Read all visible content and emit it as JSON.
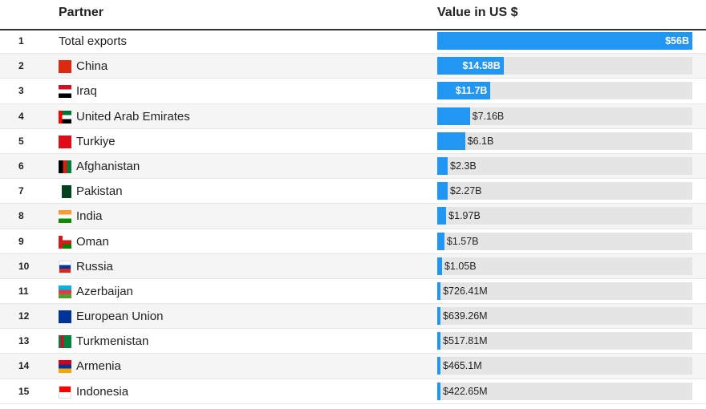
{
  "header": {
    "partner": "Partner",
    "value": "Value in US $"
  },
  "chart_data": {
    "type": "bar",
    "orientation": "horizontal",
    "xlabel": "Value in US $",
    "ylabel": "Partner",
    "xlim": [
      0,
      56000000000
    ],
    "bar_color": "#2196f3",
    "track_color": "#e5e5e5",
    "rows": [
      {
        "rank": "1",
        "partner": "Total exports",
        "value": 56000000000,
        "label": "$56B",
        "flag": null
      },
      {
        "rank": "2",
        "partner": "China",
        "value": 14580000000,
        "label": "$14.58B",
        "flag": "china-flag-icon"
      },
      {
        "rank": "3",
        "partner": "Iraq",
        "value": 11700000000,
        "label": "$11.7B",
        "flag": "iraq-flag-icon"
      },
      {
        "rank": "4",
        "partner": "United Arab Emirates",
        "value": 7160000000,
        "label": "$7.16B",
        "flag": "uae-flag-icon"
      },
      {
        "rank": "5",
        "partner": "Turkiye",
        "value": 6100000000,
        "label": "$6.1B",
        "flag": "turkiye-flag-icon"
      },
      {
        "rank": "6",
        "partner": "Afghanistan",
        "value": 2300000000,
        "label": "$2.3B",
        "flag": "afghanistan-flag-icon"
      },
      {
        "rank": "7",
        "partner": "Pakistan",
        "value": 2270000000,
        "label": "$2.27B",
        "flag": "pakistan-flag-icon"
      },
      {
        "rank": "8",
        "partner": "India",
        "value": 1970000000,
        "label": "$1.97B",
        "flag": "india-flag-icon"
      },
      {
        "rank": "9",
        "partner": "Oman",
        "value": 1570000000,
        "label": "$1.57B",
        "flag": "oman-flag-icon"
      },
      {
        "rank": "10",
        "partner": "Russia",
        "value": 1050000000,
        "label": "$1.05B",
        "flag": "russia-flag-icon"
      },
      {
        "rank": "11",
        "partner": "Azerbaijan",
        "value": 726410000,
        "label": "$726.41M",
        "flag": "azerbaijan-flag-icon"
      },
      {
        "rank": "12",
        "partner": "European Union",
        "value": 639260000,
        "label": "$639.26M",
        "flag": "eu-flag-icon"
      },
      {
        "rank": "13",
        "partner": "Turkmenistan",
        "value": 517810000,
        "label": "$517.81M",
        "flag": "turkmenistan-flag-icon"
      },
      {
        "rank": "14",
        "partner": "Armenia",
        "value": 465100000,
        "label": "$465.1M",
        "flag": "armenia-flag-icon"
      },
      {
        "rank": "15",
        "partner": "Indonesia",
        "value": 422650000,
        "label": "$422.65M",
        "flag": "indonesia-flag-icon"
      }
    ]
  }
}
